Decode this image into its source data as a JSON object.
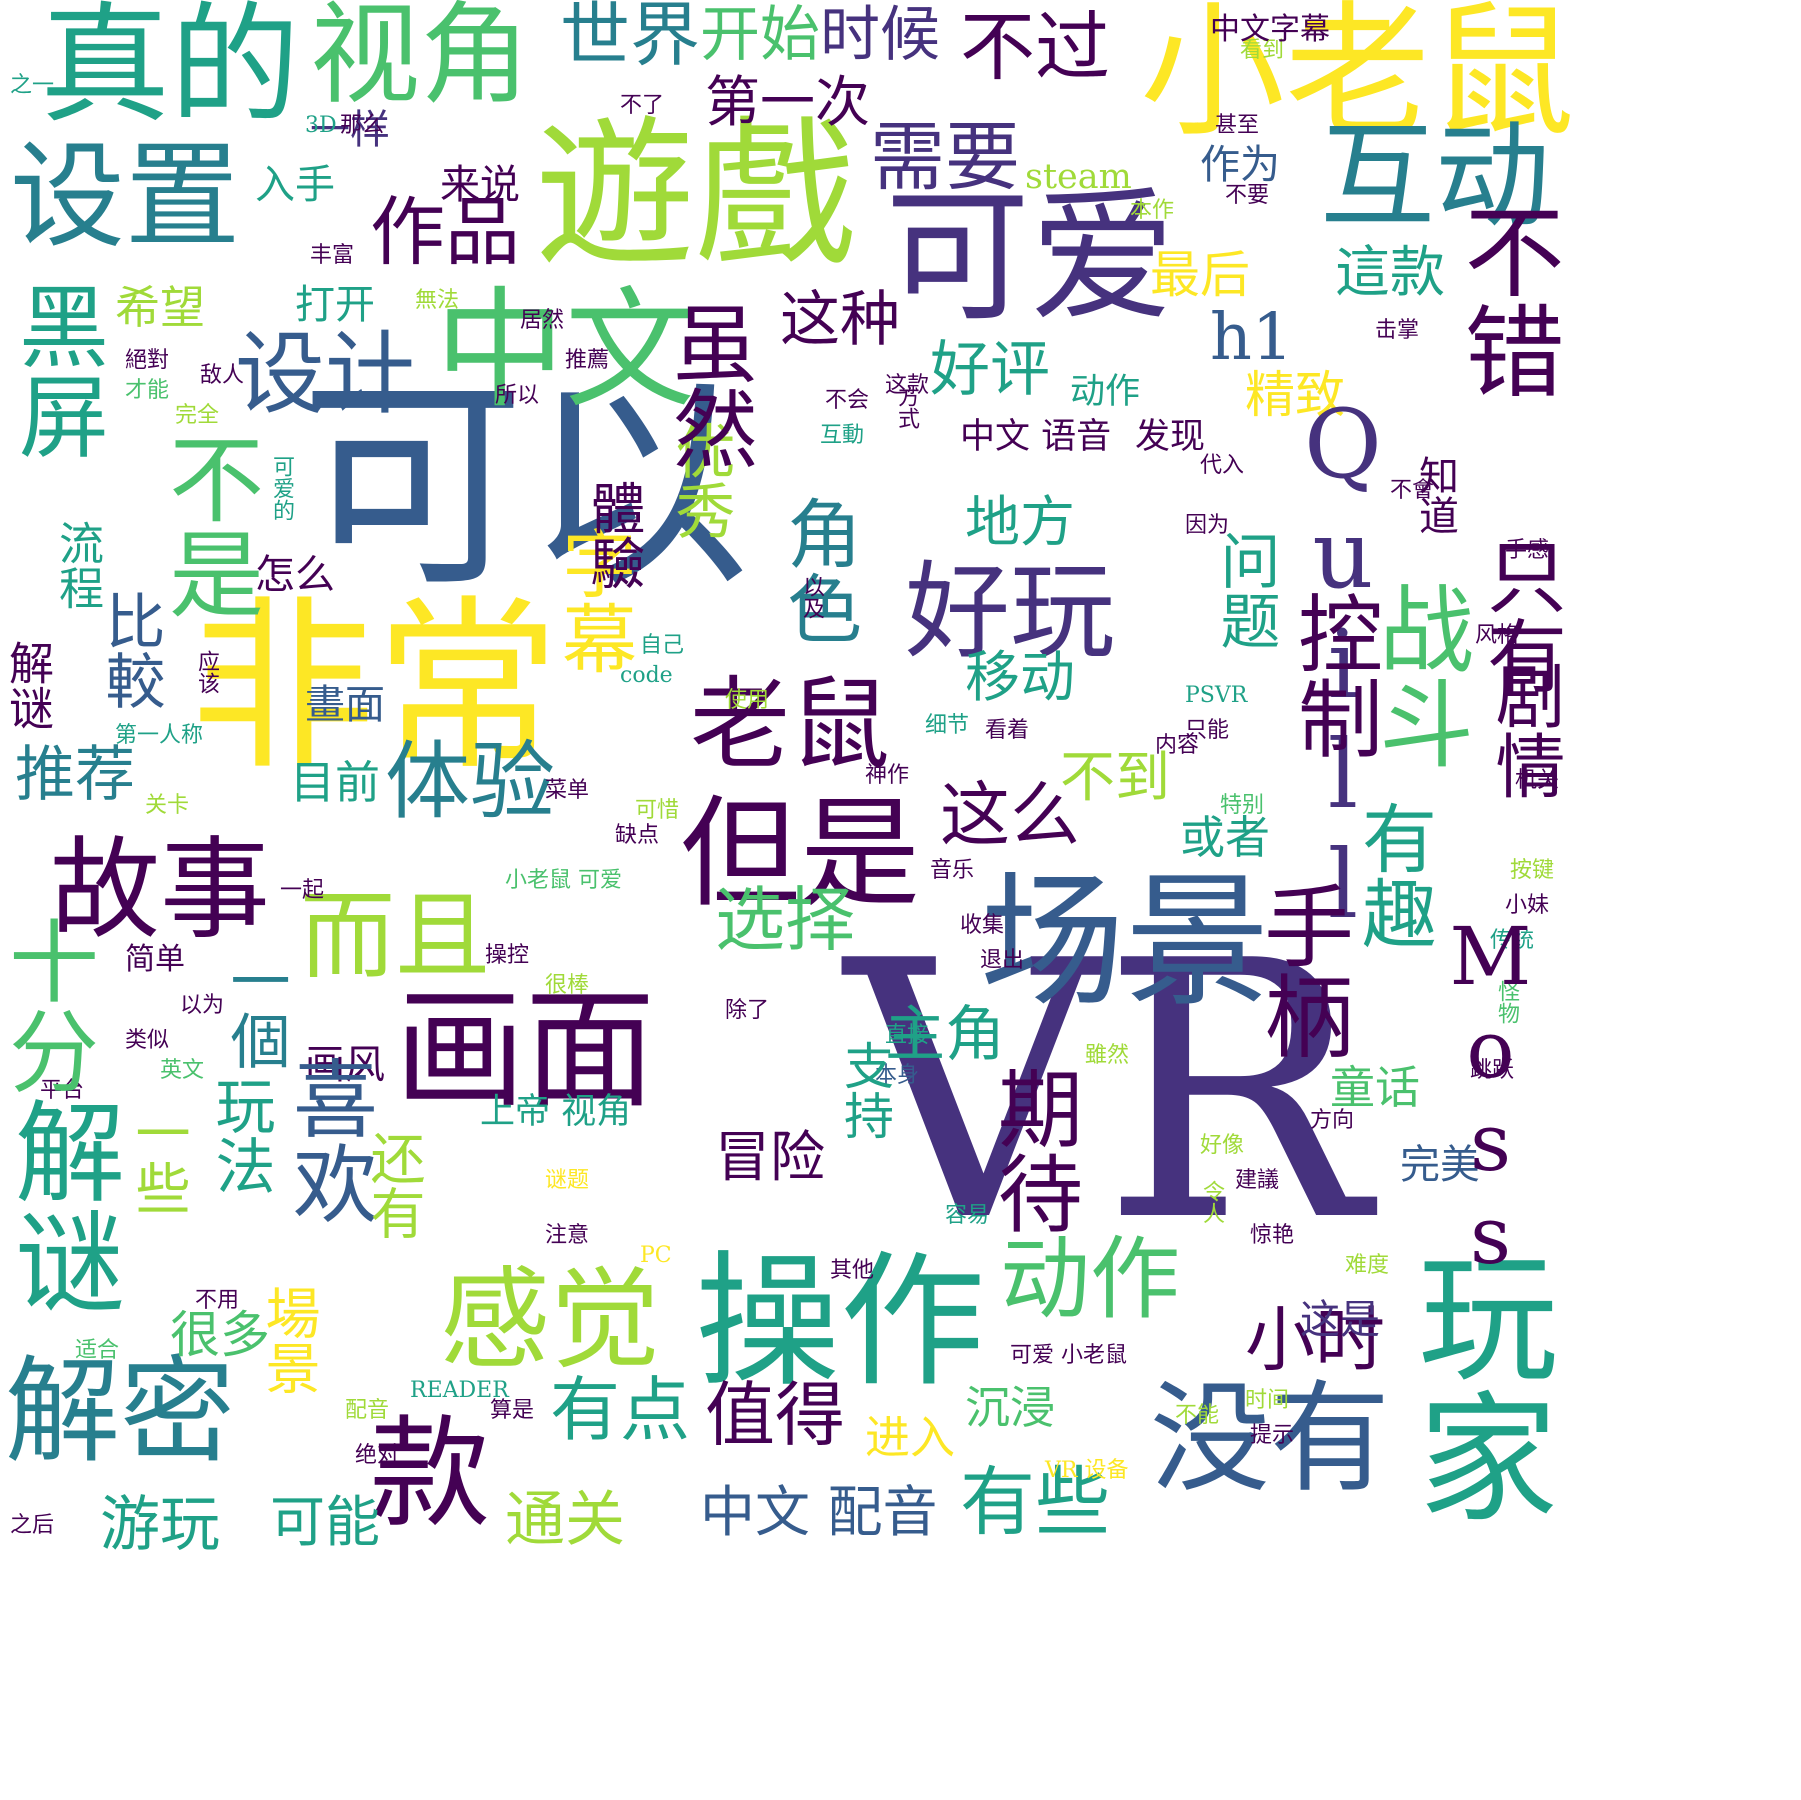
{
  "palette": {
    "yellow": "#fde725",
    "lime": "#a0da39",
    "green": "#4ac16d",
    "teal": "#1fa187",
    "cyan": "#277f8e",
    "blue": "#365c8d",
    "indigo": "#46327e",
    "purple": "#440154"
  },
  "words": [
    {
      "text": "VR",
      "color": "indigo"
    },
    {
      "text": "可以",
      "color": "blue"
    },
    {
      "text": "非常",
      "color": "yellow"
    },
    {
      "text": "遊戲",
      "color": "lime"
    },
    {
      "text": "小老鼠",
      "color": "yellow"
    },
    {
      "text": "操作",
      "color": "teal"
    },
    {
      "text": "场景",
      "color": "blue"
    },
    {
      "text": "可爱",
      "color": "indigo"
    },
    {
      "text": "中文",
      "color": "green"
    },
    {
      "text": "真的",
      "color": "teal"
    },
    {
      "text": "视角",
      "color": "green"
    },
    {
      "text": "解密",
      "color": "cyan"
    },
    {
      "text": "但是",
      "color": "purple"
    },
    {
      "text": "感觉",
      "color": "lime"
    },
    {
      "text": "玩家",
      "color": "teal"
    },
    {
      "text": "没有",
      "color": "blue"
    },
    {
      "text": "画面",
      "color": "purple"
    },
    {
      "text": "故事",
      "color": "purple"
    },
    {
      "text": "设置",
      "color": "cyan"
    },
    {
      "text": "互动",
      "color": "cyan"
    },
    {
      "text": "款",
      "color": "purple"
    },
    {
      "text": "好玩",
      "color": "indigo"
    },
    {
      "text": "老鼠",
      "color": "purple"
    },
    {
      "text": "体验",
      "color": "cyan"
    },
    {
      "text": "设计",
      "color": "blue"
    },
    {
      "text": "作品",
      "color": "purple"
    },
    {
      "text": "需要",
      "color": "indigo"
    },
    {
      "text": "不过",
      "color": "purple"
    },
    {
      "text": "世界",
      "color": "cyan"
    },
    {
      "text": "开始",
      "color": "green"
    },
    {
      "text": "时候",
      "color": "indigo"
    },
    {
      "text": "第一次",
      "color": "purple"
    },
    {
      "text": "而且",
      "color": "lime"
    },
    {
      "text": "动作",
      "color": "green"
    },
    {
      "text": "有些",
      "color": "teal"
    },
    {
      "text": "有点",
      "color": "teal"
    },
    {
      "text": "值得",
      "color": "purple"
    },
    {
      "text": "小时",
      "color": "purple"
    },
    {
      "text": "中文 配音",
      "color": "blue"
    },
    {
      "text": "可能",
      "color": "teal"
    },
    {
      "text": "游玩",
      "color": "teal"
    },
    {
      "text": "通关",
      "color": "lime"
    },
    {
      "text": "推荐",
      "color": "cyan"
    },
    {
      "text": "目前",
      "color": "teal"
    },
    {
      "text": "这么",
      "color": "purple"
    },
    {
      "text": "不到",
      "color": "lime"
    },
    {
      "text": "选择",
      "color": "green"
    },
    {
      "text": "主角",
      "color": "teal"
    },
    {
      "text": "移动",
      "color": "teal"
    },
    {
      "text": "地方",
      "color": "teal"
    },
    {
      "text": "好评",
      "color": "teal"
    },
    {
      "text": "这种",
      "color": "purple"
    },
    {
      "text": "h1",
      "color": "blue"
    },
    {
      "text": "最后",
      "color": "yellow"
    },
    {
      "text": "這款",
      "color": "teal"
    },
    {
      "text": "精致",
      "color": "yellow"
    },
    {
      "text": "希望",
      "color": "lime"
    },
    {
      "text": "打开",
      "color": "teal"
    },
    {
      "text": "来说",
      "color": "purple"
    },
    {
      "text": "作为",
      "color": "blue"
    },
    {
      "text": "一样",
      "color": "indigo"
    },
    {
      "text": "入手",
      "color": "teal"
    },
    {
      "text": "或者",
      "color": "teal"
    },
    {
      "text": "童话",
      "color": "green"
    },
    {
      "text": "完美",
      "color": "blue"
    },
    {
      "text": "这是",
      "color": "indigo"
    },
    {
      "text": "进入",
      "color": "yellow"
    },
    {
      "text": "沉浸",
      "color": "green"
    },
    {
      "text": "冒险",
      "color": "purple"
    },
    {
      "text": "画风",
      "color": "purple"
    },
    {
      "text": "畫面",
      "color": "blue"
    },
    {
      "text": "一個",
      "color": "cyan"
    },
    {
      "text": "很多",
      "color": "green"
    },
    {
      "text": "上帝 视角",
      "color": "teal"
    },
    {
      "text": "简单",
      "color": "purple"
    },
    {
      "text": "类似",
      "color": "purple"
    },
    {
      "text": "平台",
      "color": "purple"
    },
    {
      "text": "适合",
      "color": "green"
    },
    {
      "text": "不用",
      "color": "purple"
    },
    {
      "text": "之后",
      "color": "purple"
    },
    {
      "text": "注意",
      "color": "purple"
    },
    {
      "text": "谜题",
      "color": "yellow"
    },
    {
      "text": "算是",
      "color": "purple"
    },
    {
      "text": "绝对",
      "color": "purple"
    },
    {
      "text": "配音",
      "color": "lime"
    },
    {
      "text": "READER",
      "color": "teal"
    },
    {
      "text": "PC",
      "color": "yellow"
    },
    {
      "text": "容易",
      "color": "teal"
    },
    {
      "text": "其他",
      "color": "purple"
    },
    {
      "text": "惊艳",
      "color": "purple"
    },
    {
      "text": "难度",
      "color": "lime"
    },
    {
      "text": "可爱 小老鼠",
      "color": "purple"
    },
    {
      "text": "时间",
      "color": "lime"
    },
    {
      "text": "不能",
      "color": "lime"
    },
    {
      "text": "提示",
      "color": "purple"
    },
    {
      "text": "VR 设备",
      "color": "yellow"
    },
    {
      "text": "跳跃",
      "color": "purple"
    },
    {
      "text": "方向",
      "color": "purple"
    },
    {
      "text": "好像",
      "color": "lime"
    },
    {
      "text": "建議",
      "color": "purple"
    },
    {
      "text": "令人",
      "color": "lime"
    },
    {
      "text": "本身",
      "color": "blue"
    },
    {
      "text": "直接",
      "color": "teal"
    },
    {
      "text": "雖然",
      "color": "lime"
    },
    {
      "text": "除了",
      "color": "purple"
    },
    {
      "text": "退出",
      "color": "purple"
    },
    {
      "text": "很棒",
      "color": "lime"
    },
    {
      "text": "操控",
      "color": "purple"
    },
    {
      "text": "收集",
      "color": "purple"
    },
    {
      "text": "一起",
      "color": "purple"
    },
    {
      "text": "以为",
      "color": "purple"
    },
    {
      "text": "英文",
      "color": "green"
    },
    {
      "text": "小老鼠 可爱",
      "color": "green"
    },
    {
      "text": "音乐",
      "color": "purple"
    },
    {
      "text": "缺点",
      "color": "purple"
    },
    {
      "text": "可惜",
      "color": "lime"
    },
    {
      "text": "菜单",
      "color": "purple"
    },
    {
      "text": "神作",
      "color": "purple"
    },
    {
      "text": "关卡",
      "color": "lime"
    },
    {
      "text": "第一人称",
      "color": "teal"
    },
    {
      "text": "使用",
      "color": "lime"
    },
    {
      "text": "细节",
      "color": "teal"
    },
    {
      "text": "看着",
      "color": "purple"
    },
    {
      "text": "内容",
      "color": "purple"
    },
    {
      "text": "机关",
      "color": "purple"
    },
    {
      "text": "特别",
      "color": "green"
    },
    {
      "text": "按键",
      "color": "lime"
    },
    {
      "text": "小妹",
      "color": "purple"
    },
    {
      "text": "传统",
      "color": "teal"
    },
    {
      "text": "怪物",
      "color": "green"
    },
    {
      "text": "只能",
      "color": "purple"
    },
    {
      "text": "PSVR",
      "color": "teal"
    },
    {
      "text": "风格",
      "color": "purple"
    },
    {
      "text": "自己",
      "color": "teal"
    },
    {
      "text": "code",
      "color": "teal"
    },
    {
      "text": "应该",
      "color": "purple"
    },
    {
      "text": "怎么",
      "color": "purple"
    },
    {
      "text": "手感",
      "color": "purple"
    },
    {
      "text": "因为",
      "color": "purple"
    },
    {
      "text": "不會",
      "color": "purple"
    },
    {
      "text": "代入",
      "color": "purple"
    },
    {
      "text": "发现",
      "color": "purple"
    },
    {
      "text": "中文 语音",
      "color": "purple"
    },
    {
      "text": "互動",
      "color": "teal"
    },
    {
      "text": "不会",
      "color": "purple"
    },
    {
      "text": "所以",
      "color": "purple"
    },
    {
      "text": "动作",
      "color": "teal"
    },
    {
      "text": "这款",
      "color": "purple"
    },
    {
      "text": "推薦",
      "color": "purple"
    },
    {
      "text": "居然",
      "color": "purple"
    },
    {
      "text": "击掌",
      "color": "purple"
    },
    {
      "text": "無法",
      "color": "lime"
    },
    {
      "text": "丰富",
      "color": "purple"
    },
    {
      "text": "本作",
      "color": "lime"
    },
    {
      "text": "不要",
      "color": "purple"
    },
    {
      "text": "甚至",
      "color": "purple"
    },
    {
      "text": "steam",
      "color": "lime"
    },
    {
      "text": "3D",
      "color": "teal"
    },
    {
      "text": "那么",
      "color": "purple"
    },
    {
      "text": "不了",
      "color": "purple"
    },
    {
      "text": "看到",
      "color": "lime"
    },
    {
      "text": "中文字幕",
      "color": "purple"
    },
    {
      "text": "之一",
      "color": "teal"
    },
    {
      "text": "絕對",
      "color": "purple"
    },
    {
      "text": "才能",
      "color": "green"
    },
    {
      "text": "敌人",
      "color": "purple"
    },
    {
      "text": "完全",
      "color": "lime"
    },
    {
      "text": "黑屏",
      "color": "teal"
    },
    {
      "text": "流程",
      "color": "teal"
    },
    {
      "text": "比較",
      "color": "blue"
    },
    {
      "text": "不是",
      "color": "green"
    },
    {
      "text": "解谜",
      "color": "purple"
    },
    {
      "text": "十分",
      "color": "green"
    },
    {
      "text": "解谜",
      "color": "teal"
    },
    {
      "text": "喜欢",
      "color": "blue"
    },
    {
      "text": "玩法",
      "color": "teal"
    },
    {
      "text": "一些",
      "color": "lime"
    },
    {
      "text": "还有",
      "color": "lime"
    },
    {
      "text": "場景",
      "color": "yellow"
    },
    {
      "text": "字幕",
      "color": "yellow"
    },
    {
      "text": "优秀",
      "color": "lime"
    },
    {
      "text": "虽然",
      "color": "purple"
    },
    {
      "text": "體驗",
      "color": "purple"
    },
    {
      "text": "角色",
      "color": "cyan"
    },
    {
      "text": "Quill",
      "color": "indigo"
    },
    {
      "text": "控制",
      "color": "purple"
    },
    {
      "text": "手柄",
      "color": "purple"
    },
    {
      "text": "期待",
      "color": "purple"
    },
    {
      "text": "支持",
      "color": "teal"
    },
    {
      "text": "有趣",
      "color": "teal"
    },
    {
      "text": "Moss",
      "color": "purple"
    },
    {
      "text": "战斗",
      "color": "green"
    },
    {
      "text": "不错",
      "color": "purple"
    },
    {
      "text": "只有",
      "color": "purple"
    },
    {
      "text": "剧情",
      "color": "purple"
    },
    {
      "text": "问题",
      "color": "teal"
    },
    {
      "text": "知道",
      "color": "purple"
    },
    {
      "text": "可爱的",
      "color": "teal"
    },
    {
      "text": "以及",
      "color": "purple"
    },
    {
      "text": "方式",
      "color": "purple"
    }
  ]
}
